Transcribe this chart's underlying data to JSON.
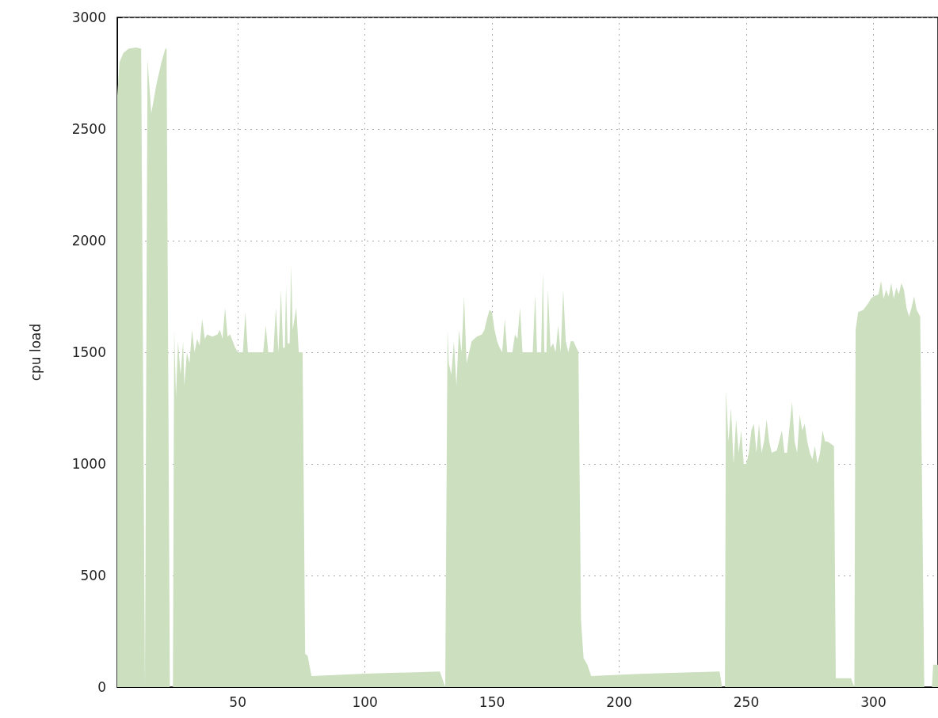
{
  "chart_data": {
    "type": "area",
    "ylabel": "cpu load",
    "xlim": [
      2.6,
      325.4
    ],
    "ylim": [
      0,
      3000
    ],
    "xticks": [
      50,
      100,
      150,
      200,
      250,
      300
    ],
    "yticks": [
      0,
      500,
      1000,
      1500,
      2000,
      2500,
      3000
    ],
    "grid": true,
    "marker": "none",
    "series": [
      {
        "color": "#cce0c0",
        "x": [
          2.6,
          3.5,
          5,
          7,
          10,
          12,
          13.5,
          14.5,
          16,
          18,
          20,
          21.5,
          22,
          23.3,
          24.5,
          25,
          25.7,
          26.5,
          27.5,
          28.5,
          29,
          30,
          31,
          32,
          33,
          34,
          35,
          36,
          37,
          38,
          40,
          42,
          43,
          44,
          45,
          46,
          47,
          48,
          49,
          50,
          52,
          53,
          54,
          56,
          58,
          60,
          61,
          62,
          64,
          65,
          66,
          67,
          67.8,
          68.5,
          69,
          69.6,
          70.4,
          71,
          71.6,
          73,
          74,
          75.5,
          76.5,
          77.5,
          79,
          100,
          129.5,
          131.6,
          132.5,
          133,
          134,
          135,
          136,
          137,
          138,
          139,
          140,
          141,
          142,
          144,
          146,
          147,
          148,
          149,
          150,
          151,
          152,
          153,
          154,
          155,
          156,
          158,
          159,
          160,
          161,
          162,
          164,
          166,
          167,
          167.7,
          169.3,
          170,
          170.6,
          171.4,
          172,
          173,
          174,
          175,
          176,
          177,
          178,
          179,
          180,
          181,
          182,
          184,
          185,
          186,
          187.5,
          189,
          210,
          239.5,
          240.5,
          241.6,
          242,
          243,
          244,
          245,
          246,
          247,
          248,
          249,
          250,
          251,
          252,
          253,
          254,
          255,
          256,
          257,
          258,
          259,
          260,
          262,
          264,
          265,
          266,
          268,
          269,
          270,
          271,
          272,
          273,
          274,
          275,
          276,
          277,
          278,
          279,
          280,
          281,
          282,
          284.5,
          285.2,
          291.2,
          292.5,
          293,
          294,
          296,
          298,
          299,
          300,
          302,
          303,
          304,
          305,
          306,
          307,
          308,
          309,
          310,
          311,
          312,
          313,
          314,
          315,
          316,
          317,
          318.4,
          320,
          323,
          323.5,
          325.4
        ],
        "values": [
          2650,
          2800,
          2840,
          2860,
          2865,
          2860,
          0,
          2810,
          2570,
          2700,
          2800,
          2860,
          2860,
          0,
          0,
          1600,
          1300,
          1550,
          1400,
          1550,
          1350,
          1500,
          1450,
          1600,
          1500,
          1560,
          1530,
          1650,
          1560,
          1580,
          1570,
          1580,
          1600,
          1560,
          1700,
          1570,
          1580,
          1550,
          1520,
          1500,
          1500,
          1680,
          1500,
          1500,
          1500,
          1500,
          1620,
          1500,
          1500,
          1700,
          1500,
          1780,
          1520,
          1520,
          1800,
          1540,
          1540,
          1890,
          1600,
          1700,
          1500,
          1500,
          150,
          140,
          50,
          60,
          70,
          0,
          1600,
          1450,
          1400,
          1550,
          1350,
          1600,
          1500,
          1750,
          1450,
          1500,
          1550,
          1570,
          1580,
          1600,
          1650,
          1690,
          1680,
          1600,
          1550,
          1520,
          1500,
          1650,
          1500,
          1500,
          1580,
          1560,
          1700,
          1500,
          1500,
          1500,
          1760,
          1500,
          1500,
          1860,
          1500,
          1500,
          1780,
          1520,
          1540,
          1500,
          1620,
          1500,
          1780,
          1550,
          1500,
          1550,
          1550,
          1500,
          300,
          130,
          100,
          50,
          60,
          70,
          0,
          0,
          1330,
          1100,
          1250,
          1000,
          1200,
          1050,
          1150,
          1000,
          1000,
          1050,
          1150,
          1180,
          1050,
          1180,
          1050,
          1100,
          1200,
          1100,
          1050,
          1060,
          1150,
          1050,
          1050,
          1280,
          1100,
          1050,
          1220,
          1150,
          1180,
          1100,
          1050,
          1020,
          1080,
          1000,
          1050,
          1150,
          1100,
          1100,
          1080,
          40,
          40,
          0,
          1600,
          1680,
          1690,
          1720,
          1740,
          1750,
          1760,
          1820,
          1740,
          1780,
          1750,
          1810,
          1740,
          1790,
          1760,
          1810,
          1780,
          1700,
          1660,
          1700,
          1750,
          1690,
          1660,
          0,
          0,
          100,
          100
        ]
      }
    ]
  }
}
